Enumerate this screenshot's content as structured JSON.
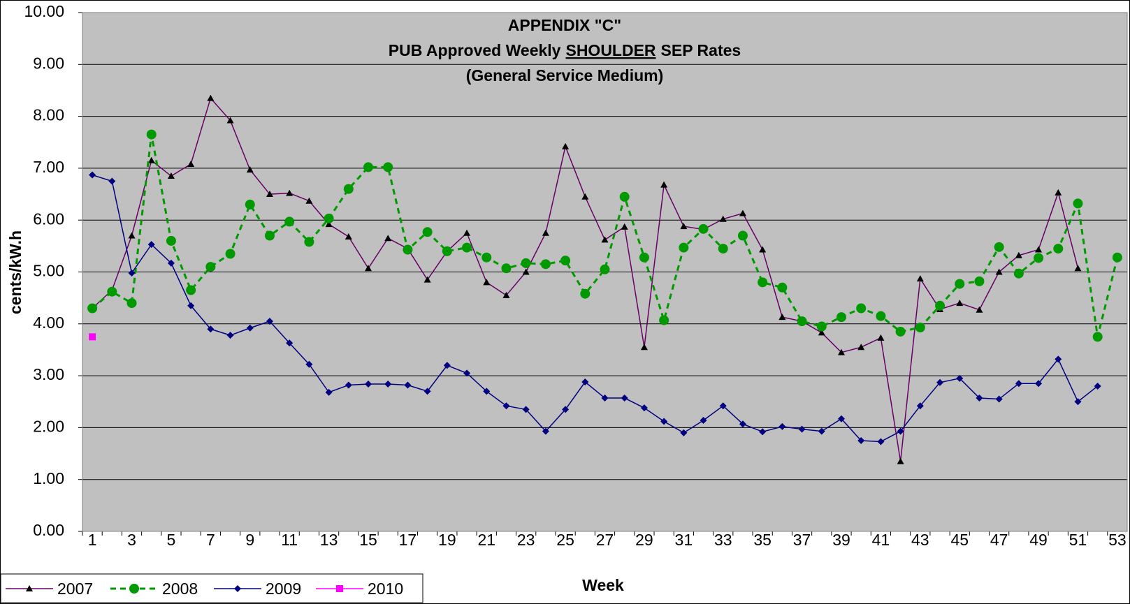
{
  "chart_data": {
    "type": "line",
    "title": [
      "APPENDIX \"C\"",
      [
        "PUB Approved Weekly",
        "SHOULDER",
        "SEP Rates"
      ],
      "(General Service Medium)"
    ],
    "x_label": "Week",
    "y_label": "cents/kW.h",
    "categories": [
      1,
      null,
      3,
      null,
      5,
      null,
      7,
      null,
      9,
      null,
      11,
      null,
      13,
      null,
      15,
      null,
      17,
      null,
      19,
      null,
      21,
      null,
      23,
      null,
      25,
      null,
      27,
      null,
      29,
      null,
      31,
      null,
      33,
      null,
      35,
      null,
      37,
      null,
      39,
      null,
      41,
      null,
      43,
      null,
      45,
      null,
      47,
      null,
      49,
      null,
      51,
      null,
      53
    ],
    "ylim": [
      0,
      10
    ],
    "yticks": [
      {
        "value": 0,
        "label": "0.00"
      },
      {
        "value": 1,
        "label": "1.00"
      },
      {
        "value": 2,
        "label": "2.00"
      },
      {
        "value": 3,
        "label": "3.00"
      },
      {
        "value": 4,
        "label": "4.00"
      },
      {
        "value": 5,
        "label": "5.00"
      },
      {
        "value": 6,
        "label": "6.00"
      },
      {
        "value": 7,
        "label": "7.00"
      },
      {
        "value": 8,
        "label": "8.00"
      },
      {
        "value": 9,
        "label": "9.00"
      },
      {
        "value": 10,
        "label": "10.00"
      }
    ],
    "grid": true,
    "legend": "bottom-left",
    "series": [
      {
        "name": "2007",
        "color": "#660066",
        "marker": "triangle",
        "dashed": false,
        "values": [
          4.3,
          4.65,
          5.7,
          7.15,
          6.85,
          7.08,
          8.35,
          7.92,
          6.97,
          6.5,
          6.52,
          6.37,
          5.92,
          5.68,
          5.07,
          5.65,
          5.45,
          4.85,
          5.4,
          5.75,
          4.8,
          4.55,
          5.0,
          5.75,
          7.42,
          6.45,
          5.62,
          5.87,
          3.55,
          6.68,
          5.88,
          5.82,
          6.02,
          6.13,
          5.43,
          4.13,
          4.05,
          3.83,
          3.45,
          3.55,
          3.73,
          1.35,
          4.87,
          4.28,
          4.4,
          4.27,
          5.0,
          5.32,
          5.43,
          6.53,
          5.07,
          null,
          null
        ]
      },
      {
        "name": "2008",
        "color": "#009900",
        "marker": "circle",
        "dashed": true,
        "values": [
          4.3,
          4.62,
          4.4,
          7.65,
          5.6,
          4.65,
          5.1,
          5.35,
          6.3,
          5.7,
          5.97,
          5.58,
          6.03,
          6.6,
          7.02,
          7.02,
          5.43,
          5.77,
          5.4,
          5.47,
          5.28,
          5.07,
          5.17,
          5.15,
          5.22,
          4.58,
          5.05,
          6.45,
          5.28,
          4.07,
          5.47,
          5.83,
          5.45,
          5.7,
          4.8,
          4.7,
          4.05,
          3.95,
          4.13,
          4.3,
          4.15,
          3.85,
          3.93,
          4.35,
          4.77,
          4.82,
          5.48,
          4.97,
          5.27,
          5.45,
          6.32,
          3.75,
          5.28
        ]
      },
      {
        "name": "2009",
        "color": "#000080",
        "marker": "diamond",
        "dashed": false,
        "values": [
          6.87,
          6.75,
          4.98,
          5.53,
          5.17,
          4.35,
          3.9,
          3.78,
          3.92,
          4.05,
          3.63,
          3.22,
          2.68,
          2.82,
          2.84,
          2.84,
          2.82,
          2.7,
          3.2,
          3.05,
          2.7,
          2.42,
          2.35,
          1.93,
          2.35,
          2.88,
          2.57,
          2.57,
          2.38,
          2.12,
          1.9,
          2.14,
          2.42,
          2.07,
          1.92,
          2.02,
          1.97,
          1.93,
          2.17,
          1.75,
          1.73,
          1.93,
          2.42,
          2.87,
          2.95,
          2.57,
          2.55,
          2.85,
          2.85,
          3.32,
          2.5,
          2.8,
          null
        ]
      },
      {
        "name": "2010",
        "color": "#ff00ff",
        "marker": "square",
        "dashed": false,
        "values": [
          3.75,
          null,
          null,
          null,
          null,
          null,
          null,
          null,
          null,
          null,
          null,
          null,
          null,
          null,
          null,
          null,
          null,
          null,
          null,
          null,
          null,
          null,
          null,
          null,
          null,
          null,
          null,
          null,
          null,
          null,
          null,
          null,
          null,
          null,
          null,
          null,
          null,
          null,
          null,
          null,
          null,
          null,
          null,
          null,
          null,
          null,
          null,
          null,
          null,
          null,
          null,
          null,
          null
        ]
      }
    ]
  }
}
